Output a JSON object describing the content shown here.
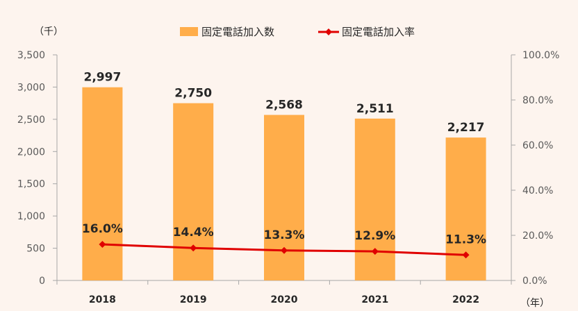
{
  "chart_data": {
    "type": "bar",
    "categories": [
      "2018",
      "2019",
      "2020",
      "2021",
      "2022"
    ],
    "series": [
      {
        "name": "固定電話加入数",
        "type": "bar",
        "axis": "left",
        "values": [
          2997,
          2750,
          2568,
          2511,
          2217
        ],
        "labels": [
          "2,997",
          "2,750",
          "2,568",
          "2,511",
          "2,217"
        ],
        "color": "#ffad4a"
      },
      {
        "name": "固定電話加入率",
        "type": "line",
        "axis": "right",
        "values": [
          16.0,
          14.4,
          13.3,
          12.9,
          11.3
        ],
        "labels": [
          "16.0%",
          "14.4%",
          "13.3%",
          "12.9%",
          "11.3%"
        ],
        "color": "#e00000"
      }
    ],
    "y_left": {
      "unit_label": "（千）",
      "ylim": [
        0,
        3500
      ],
      "ticks": [
        0,
        500,
        1000,
        1500,
        2000,
        2500,
        3000,
        3500
      ],
      "tick_labels": [
        "0",
        "500",
        "1,000",
        "1,500",
        "2,000",
        "2,500",
        "3,000",
        "3,500"
      ]
    },
    "y_right": {
      "ylim": [
        0,
        100
      ],
      "ticks": [
        0,
        20,
        40,
        60,
        80,
        100
      ],
      "tick_labels": [
        "0.0%",
        "20.0%",
        "40.0%",
        "60.0%",
        "80.0%",
        "100.0%"
      ]
    },
    "x_unit_label": "（年）",
    "legend": {
      "position": "top-center"
    },
    "grid": false,
    "background": "#fdf4ee",
    "axis_color": "#a6a6a6"
  }
}
